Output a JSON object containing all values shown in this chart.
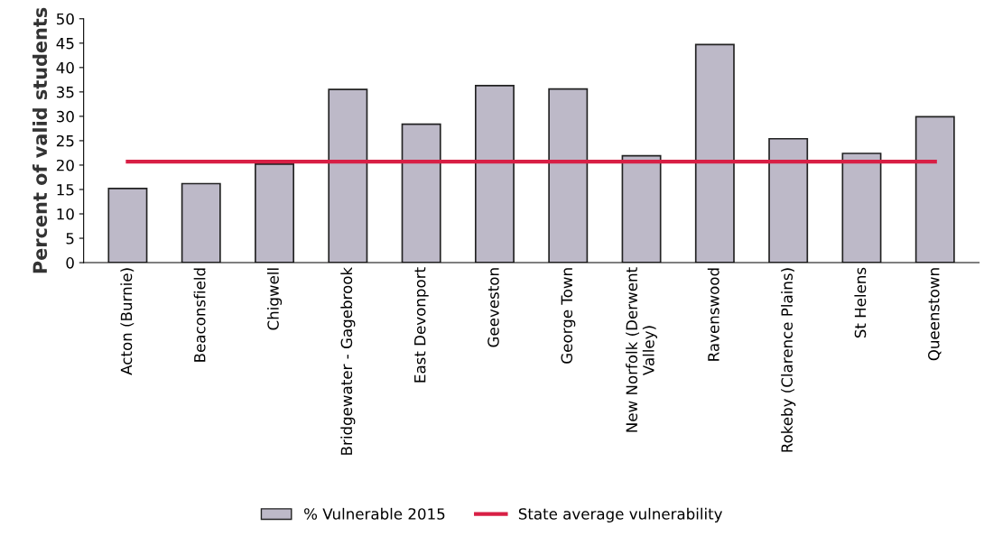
{
  "chart_data": {
    "type": "bar",
    "ylabel": "Percent of valid students",
    "categories": [
      "Acton (Burnie)",
      "Beaconsfield",
      "Chigwell",
      "Bridgewater - Gagebrook",
      "East Devonport",
      "Geeveston",
      "George Town",
      "New Norfolk (Derwent\nValley)",
      "Ravenswood",
      "Rokeby (Clarence Plains)",
      "St Helens",
      "Queenstown"
    ],
    "series": [
      {
        "name": "% Vulnerable 2015",
        "color": "#bdb9c8",
        "values": [
          15.2,
          16.2,
          20.2,
          35.5,
          28.4,
          36.3,
          35.6,
          21.9,
          44.7,
          25.4,
          22.4,
          29.9
        ]
      },
      {
        "name": "State average vulnerability",
        "type": "line",
        "color": "#d81f45",
        "values": [
          20.7,
          20.7,
          20.7,
          20.7,
          20.7,
          20.7,
          20.7,
          20.7,
          20.7,
          20.7,
          20.7,
          20.7
        ]
      }
    ],
    "ylim": [
      0,
      50
    ],
    "yticks": [
      0,
      5,
      10,
      15,
      20,
      25,
      30,
      35,
      40,
      45,
      50
    ],
    "grid": false,
    "legend": "bottom"
  }
}
